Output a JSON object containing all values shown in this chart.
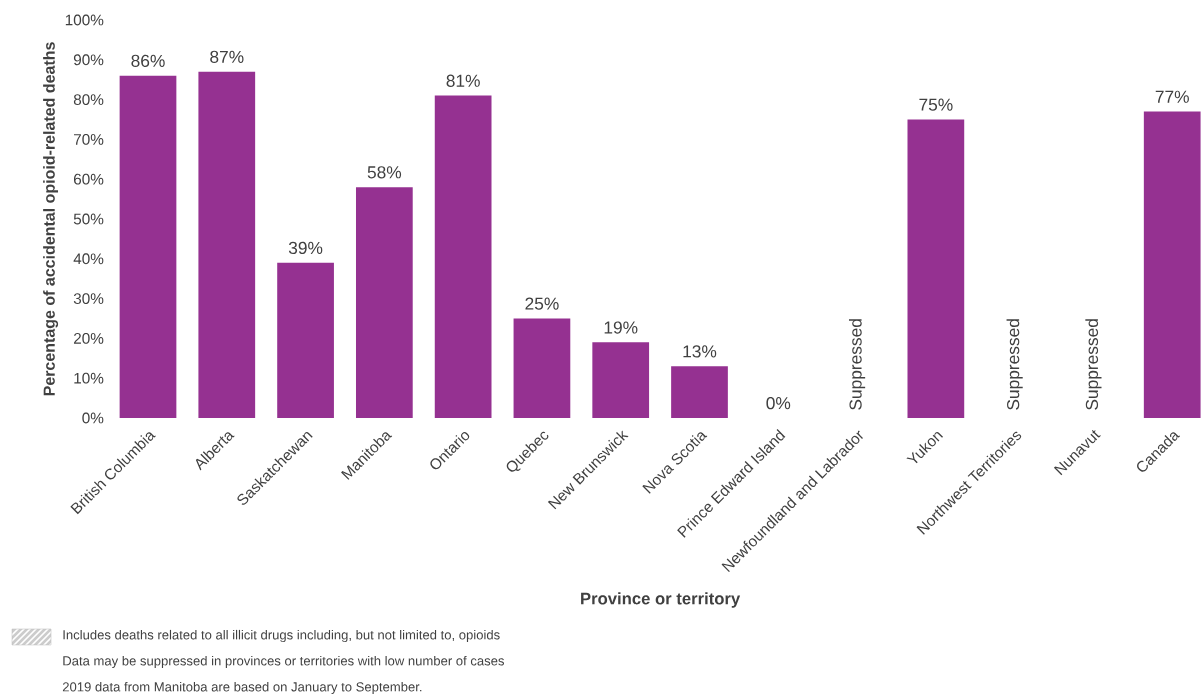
{
  "chart_data": {
    "type": "bar",
    "xlabel": "Province or territory",
    "ylabel": "Percentage of accidental opioid-related deaths",
    "categories": [
      "British Columbia",
      "Alberta",
      "Saskatchewan",
      "Manitoba",
      "Ontario",
      "Quebec",
      "New Brunswick",
      "Nova Scotia",
      "Prince Edward Island",
      "Newfoundland and Labrador",
      "Yukon",
      "Northwest Territories",
      "Nunavut",
      "Canada"
    ],
    "values": [
      86,
      87,
      39,
      58,
      81,
      25,
      19,
      13,
      0,
      null,
      75,
      null,
      null,
      77
    ],
    "value_labels": [
      "86%",
      "87%",
      "39%",
      "58%",
      "81%",
      "25%",
      "19%",
      "13%",
      "0%",
      "Suppressed",
      "75%",
      "Suppressed",
      "Suppressed",
      "77%"
    ],
    "colors": [
      "#953191",
      "#953191",
      "#953191",
      "#953191",
      "#953191",
      "#953191",
      "#953191",
      "#953191",
      "#953191",
      "#953191",
      "#953191",
      "#953191",
      "#953191",
      "#953191"
    ],
    "ylim": [
      0,
      100
    ],
    "yticks": [
      {
        "value": 0,
        "label": "0%"
      },
      {
        "value": 10,
        "label": "10%"
      },
      {
        "value": 20,
        "label": "20%"
      },
      {
        "value": 30,
        "label": "30%"
      },
      {
        "value": 40,
        "label": "40%"
      },
      {
        "value": 50,
        "label": "50%"
      },
      {
        "value": 60,
        "label": "60%"
      },
      {
        "value": 70,
        "label": "70%"
      },
      {
        "value": 80,
        "label": "80%"
      },
      {
        "value": 90,
        "label": "90%"
      },
      {
        "value": 100,
        "label": "100%"
      }
    ],
    "annotations": [
      "Includes deaths related to all illicit drugs including, but not limited to, opioids",
      "Data may be suppressed in provinces or territories with low number of cases",
      "2019 data from Manitoba are based on January to September."
    ]
  }
}
